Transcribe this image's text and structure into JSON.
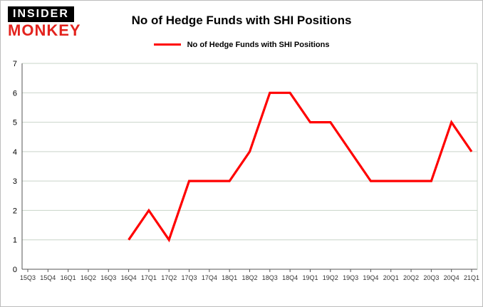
{
  "header": {
    "logo_line1": "INSIDER",
    "logo_line2": "MONKEY",
    "title": "No of Hedge Funds with SHI Positions"
  },
  "legend": {
    "label": "No of Hedge Funds with SHI Positions"
  },
  "colors": {
    "line": "#ff0000",
    "grid": "#c9d4c9",
    "axis": "#555555",
    "tick_text": "#333333",
    "logo_red": "#e3231e"
  },
  "chart_data": {
    "type": "line",
    "title": "No of Hedge Funds with SHI Positions",
    "categories": [
      "15Q3",
      "15Q4",
      "16Q1",
      "16Q2",
      "16Q3",
      "16Q4",
      "17Q1",
      "17Q2",
      "17Q3",
      "17Q4",
      "18Q1",
      "18Q2",
      "18Q3",
      "18Q4",
      "19Q1",
      "19Q2",
      "19Q3",
      "19Q4",
      "20Q1",
      "20Q2",
      "20Q3",
      "20Q4",
      "21Q1"
    ],
    "series": [
      {
        "name": "No of Hedge Funds with SHI Positions",
        "color": "#ff0000",
        "values": [
          null,
          null,
          null,
          null,
          null,
          1,
          2,
          1,
          3,
          3,
          3,
          4,
          6,
          6,
          5,
          5,
          4,
          3,
          3,
          3,
          3,
          5,
          4
        ]
      }
    ],
    "xlabel": "",
    "ylabel": "",
    "ylim": [
      0,
      7
    ],
    "yticks": [
      0,
      1,
      2,
      3,
      4,
      5,
      6,
      7
    ],
    "grid": true,
    "legend_position": "top-center"
  }
}
